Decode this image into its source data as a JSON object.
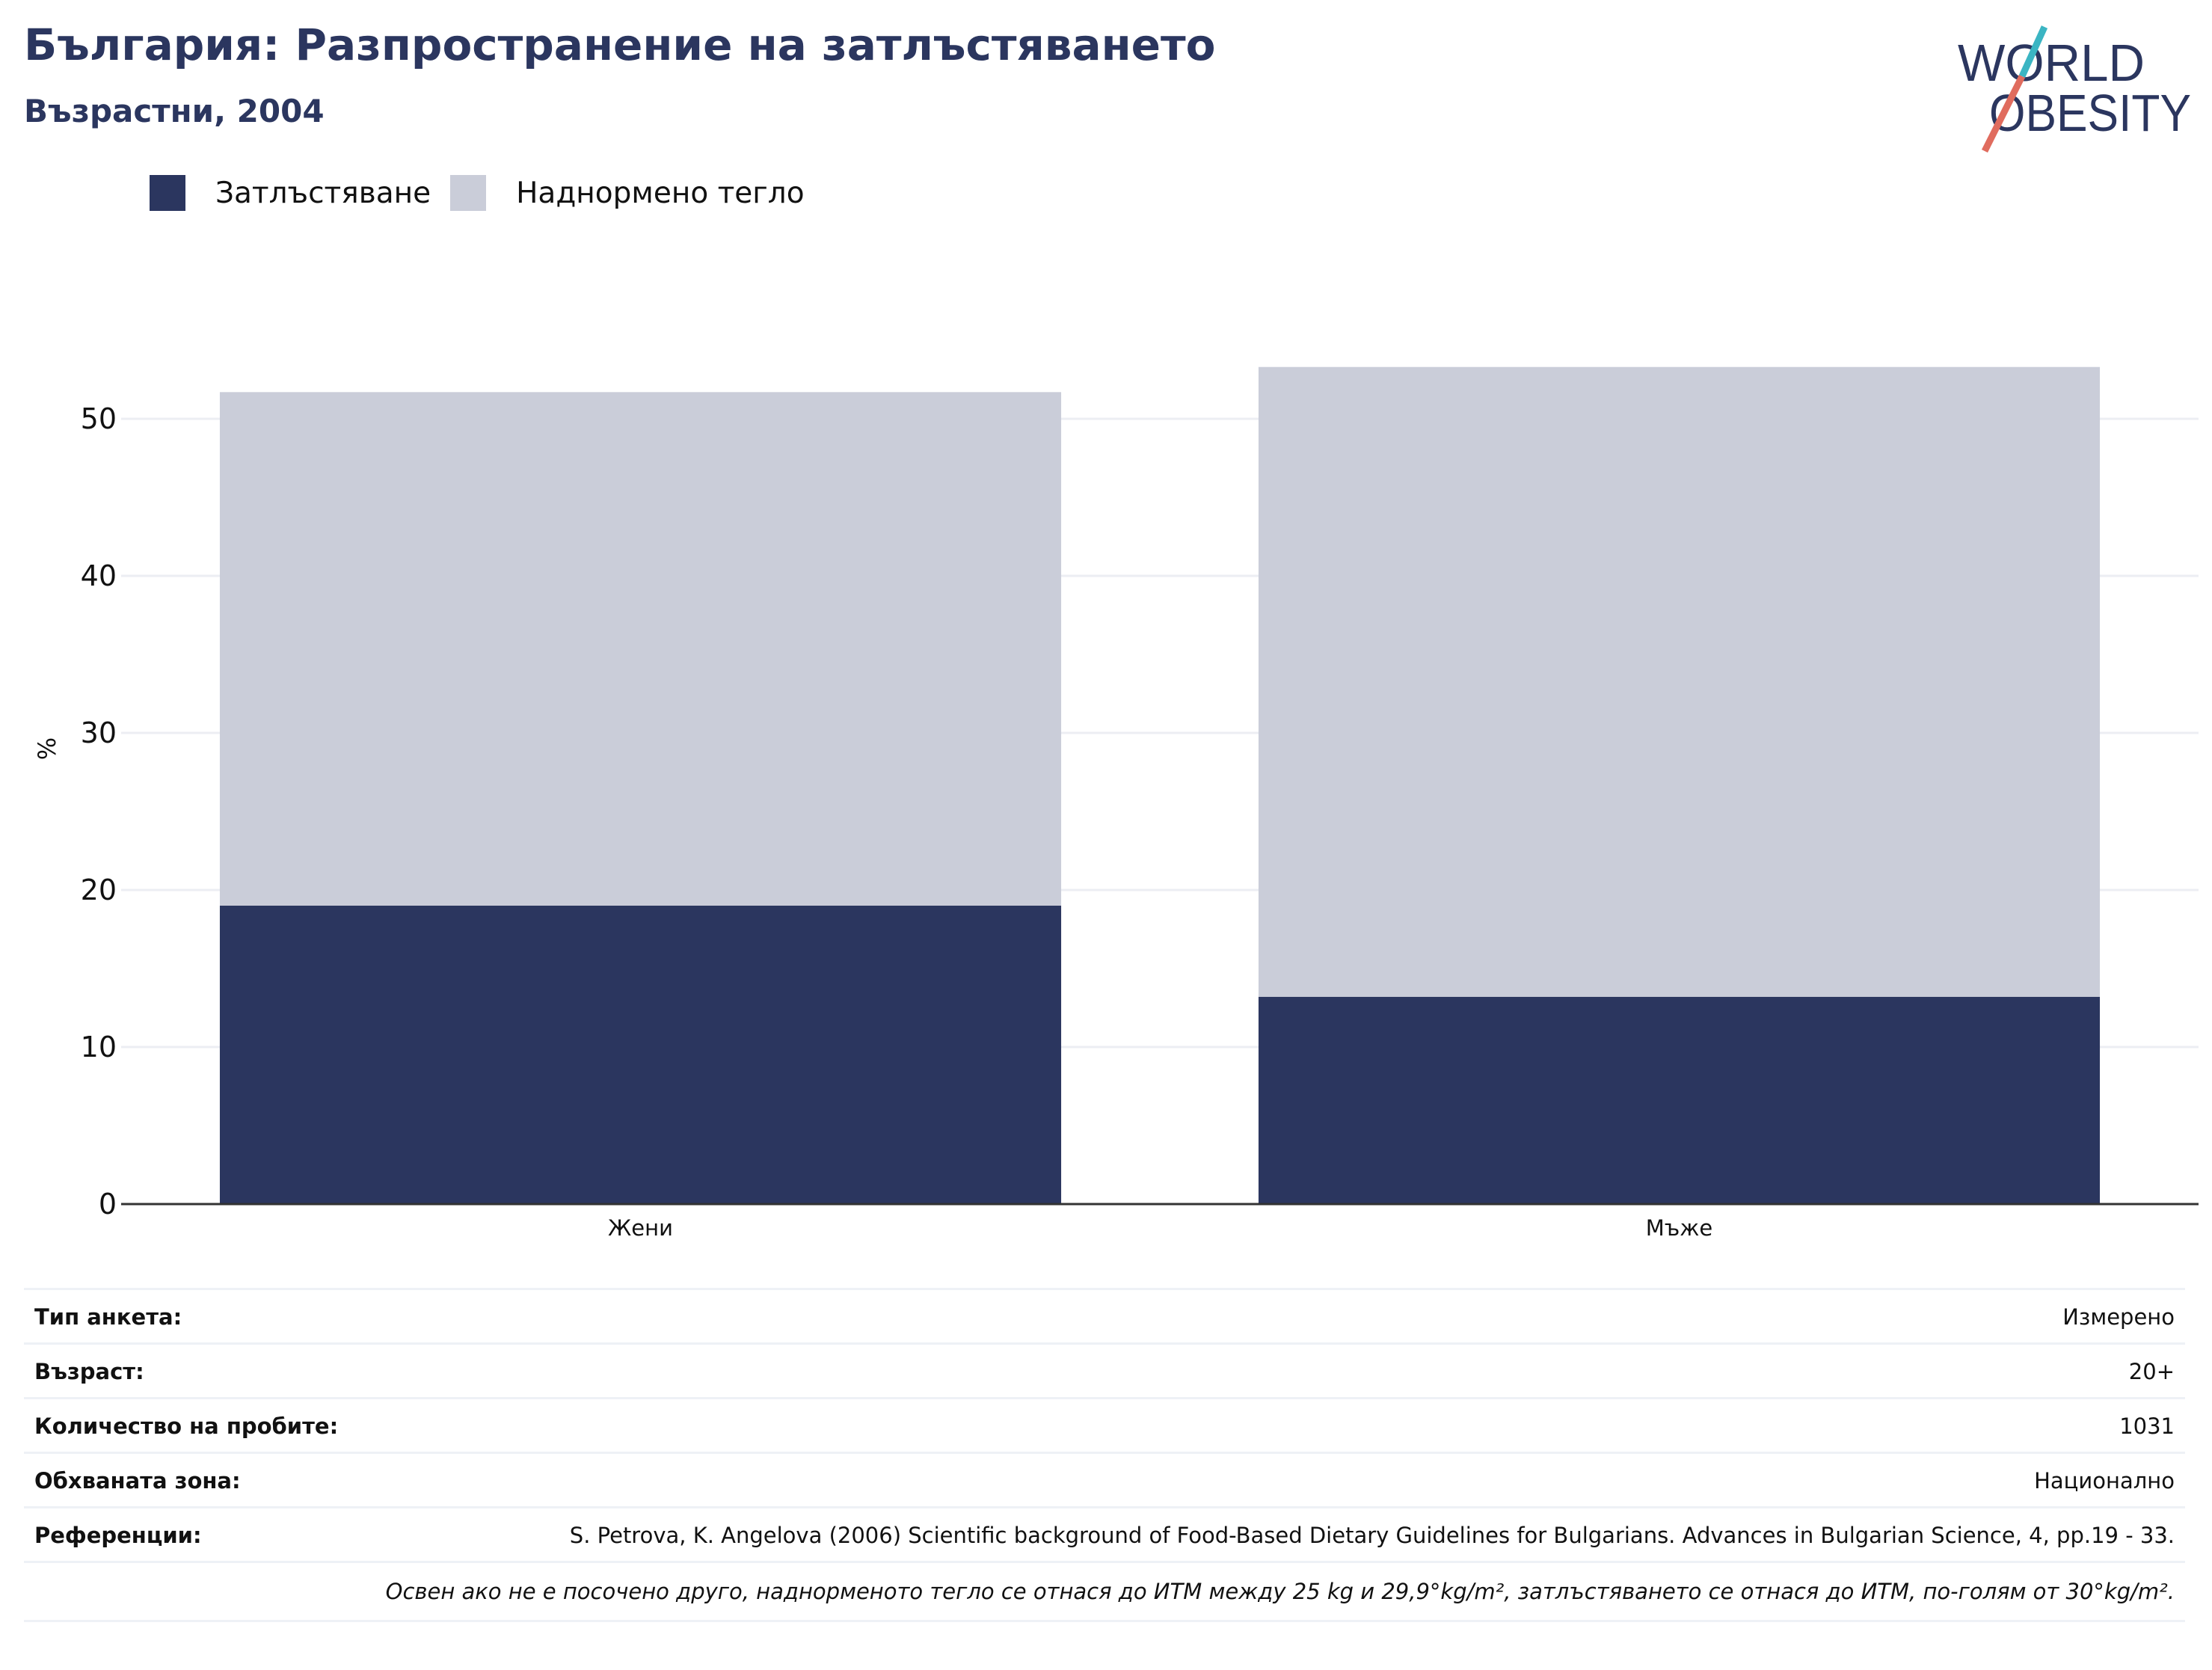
{
  "header": {
    "title": "България: Разпространение на затлъстяването",
    "subtitle": "Възрастни, 2004",
    "logo_top": "WORLD",
    "logo_bottom": "OBESITY"
  },
  "legend": [
    {
      "label": "Затлъстяване",
      "color": "#2b365f"
    },
    {
      "label": "Наднормено тегло",
      "color": "#cacdd9"
    }
  ],
  "chart_data": {
    "type": "bar",
    "stacked": true,
    "categories": [
      "Жени",
      "Мъже"
    ],
    "series": [
      {
        "name": "Затлъстяване",
        "color": "#2b365f",
        "values": [
          19.0,
          13.2
        ]
      },
      {
        "name": "Наднормено тегло",
        "color": "#cacdd9",
        "values": [
          32.7,
          40.1
        ]
      }
    ],
    "title": "България: Разпространение на затлъстяването",
    "subtitle": "Възрастни, 2004",
    "xlabel": "",
    "ylabel": "%",
    "ylim": [
      0,
      55
    ],
    "yticks": [
      0,
      10,
      20,
      30,
      40,
      50
    ],
    "grid": true,
    "legend_position": "top-left"
  },
  "meta": {
    "rows": [
      {
        "key": "Тип анкета:",
        "value": "Измерено"
      },
      {
        "key": "Възраст:",
        "value": "20+"
      },
      {
        "key": "Количество на пробите:",
        "value": "1031"
      },
      {
        "key": "Обхваната зона:",
        "value": "Национално"
      },
      {
        "key": "Референции:",
        "value": "S. Petrova, K. Angelova (2006) Scientific background of Food-Based Dietary Guidelines for Bulgarians. Advances in Bulgarian Science, 4, pp.19 - 33."
      }
    ],
    "note": "Освен ако не е посочено друго, наднорменото тегло се отнася до ИТМ между 25 kg и 29,9°kg/m², затлъстяването се отнася до ИТМ, по-голям от 30°kg/m²."
  },
  "colors": {
    "brand": "#2b365f",
    "logo_teal": "#3bb5c3",
    "logo_coral": "#e06c5e",
    "grid": "#eceef3",
    "axis": "#333333"
  }
}
